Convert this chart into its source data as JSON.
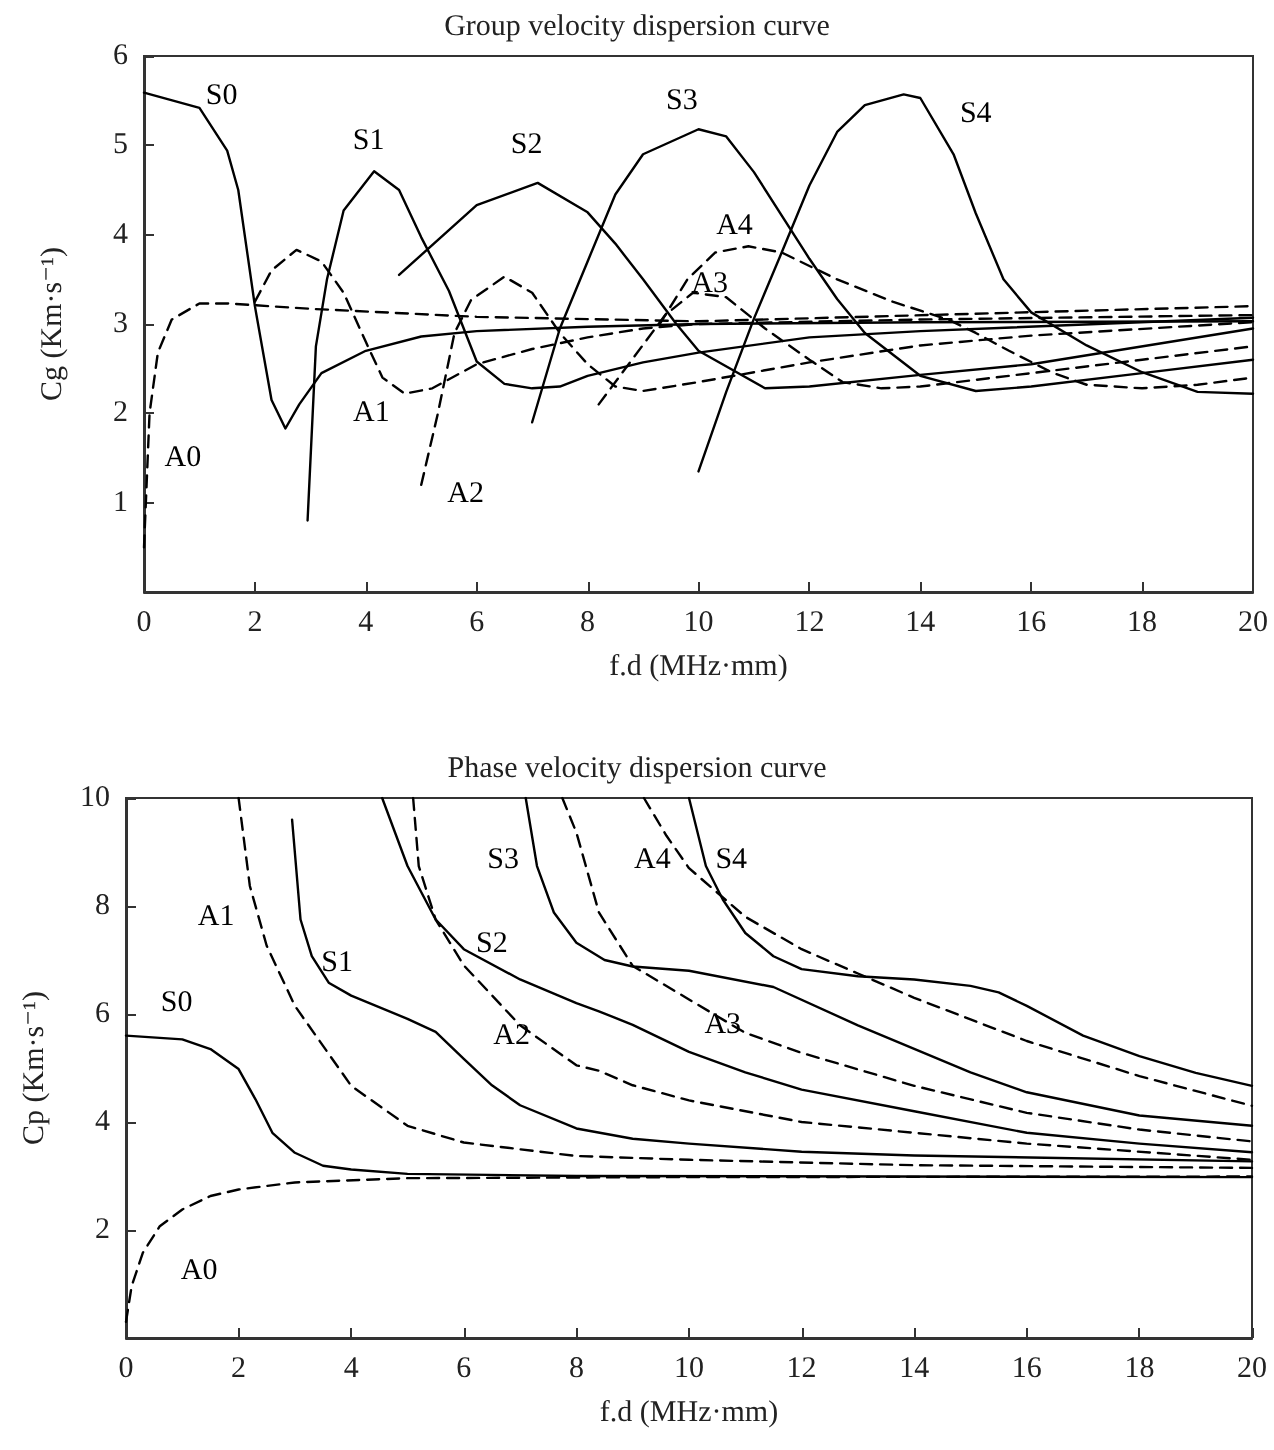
{
  "chart_data": [
    {
      "type": "line",
      "title": "Group velocity dispersion curve",
      "xlabel": "f.d (MHz·mm)",
      "ylabel": "Cg (Km·s⁻¹)",
      "xlim": [
        0,
        20
      ],
      "xticks": [
        0,
        2,
        4,
        6,
        8,
        10,
        12,
        14,
        16,
        18,
        20
      ],
      "ylim": [
        0,
        6
      ],
      "yticks": [
        1,
        2,
        3,
        4,
        5,
        6
      ],
      "grid": false,
      "legend": false,
      "series": [
        {
          "name": "S0",
          "color": "#000000",
          "line_style": "solid",
          "x": [
            0,
            1,
            1.5,
            1.7,
            2,
            2.3,
            2.55,
            2.8,
            3.2,
            4,
            5,
            6,
            8,
            10,
            14,
            20
          ],
          "values": [
            5.59,
            5.42,
            4.94,
            4.5,
            3.2,
            2.15,
            1.83,
            2.1,
            2.45,
            2.7,
            2.86,
            2.92,
            2.97,
            3.0,
            3.02,
            3.03
          ]
        },
        {
          "name": "S1",
          "color": "#000000",
          "line_style": "solid",
          "x": [
            2.95,
            3.1,
            3.3,
            3.6,
            4.15,
            4.6,
            5,
            5.5,
            6,
            6.5,
            7,
            7.5,
            8,
            9,
            10,
            12,
            14,
            20
          ],
          "values": [
            0.8,
            2.75,
            3.5,
            4.27,
            4.71,
            4.5,
            3.97,
            3.37,
            2.58,
            2.33,
            2.28,
            2.3,
            2.42,
            2.57,
            2.68,
            2.85,
            2.92,
            3.07
          ]
        },
        {
          "name": "S2",
          "color": "#000000",
          "line_style": "solid",
          "x": [
            4.6,
            6,
            7.1,
            8,
            8.5,
            9,
            9.6,
            10,
            11.2,
            12,
            14,
            16,
            20
          ],
          "values": [
            3.55,
            4.33,
            4.58,
            4.25,
            3.9,
            3.5,
            3.0,
            2.7,
            2.28,
            2.3,
            2.43,
            2.55,
            2.95
          ]
        },
        {
          "name": "S3",
          "color": "#000000",
          "line_style": "solid",
          "x": [
            7,
            7.5,
            8,
            8.5,
            9,
            10,
            10.5,
            11,
            12,
            12.5,
            13,
            14,
            15,
            16,
            18,
            20
          ],
          "values": [
            1.9,
            2.95,
            3.7,
            4.45,
            4.9,
            5.18,
            5.1,
            4.7,
            3.73,
            3.28,
            2.9,
            2.42,
            2.25,
            2.3,
            2.45,
            2.6
          ]
        },
        {
          "name": "S4",
          "color": "#000000",
          "line_style": "solid",
          "x": [
            10,
            10.5,
            11,
            11.5,
            12,
            12.5,
            13,
            13.7,
            14,
            14.6,
            15,
            15.5,
            16,
            17,
            18,
            19,
            20
          ],
          "values": [
            1.35,
            2.24,
            3.06,
            3.8,
            4.55,
            5.15,
            5.45,
            5.57,
            5.53,
            4.9,
            4.24,
            3.5,
            3.13,
            2.76,
            2.46,
            2.24,
            2.22
          ]
        },
        {
          "name": "A0",
          "color": "#000000",
          "line_style": "dashed",
          "x": [
            0,
            0.1,
            0.25,
            0.5,
            1,
            1.5,
            3,
            6,
            10,
            20
          ],
          "values": [
            0.5,
            2.0,
            2.68,
            3.05,
            3.23,
            3.23,
            3.17,
            3.08,
            3.03,
            3.2
          ]
        },
        {
          "name": "A1",
          "color": "#000000",
          "line_style": "dashed",
          "x": [
            2,
            2.3,
            2.75,
            3.2,
            3.6,
            4,
            4.3,
            4.7,
            5.2,
            6,
            7,
            8,
            9,
            10,
            14,
            20
          ],
          "values": [
            3.25,
            3.6,
            3.83,
            3.7,
            3.35,
            2.8,
            2.4,
            2.22,
            2.28,
            2.55,
            2.72,
            2.85,
            2.95,
            3.0,
            3.05,
            3.1
          ]
        },
        {
          "name": "A2",
          "color": "#000000",
          "line_style": "dashed",
          "x": [
            5,
            5.3,
            5.6,
            5.9,
            6.5,
            7,
            7.5,
            8,
            8.5,
            9,
            10,
            12,
            14,
            16,
            20
          ],
          "values": [
            1.2,
            2.0,
            2.9,
            3.27,
            3.53,
            3.35,
            2.9,
            2.55,
            2.3,
            2.25,
            2.35,
            2.57,
            2.76,
            2.87,
            3.02
          ]
        },
        {
          "name": "A3",
          "color": "#000000",
          "line_style": "dashed",
          "x": [
            8.2,
            8.8,
            9.4,
            9.9,
            10.5,
            11.2,
            12,
            12.6,
            13.3,
            14,
            16,
            18,
            20
          ],
          "values": [
            2.1,
            2.6,
            3.1,
            3.35,
            3.3,
            2.95,
            2.6,
            2.35,
            2.28,
            2.3,
            2.45,
            2.6,
            2.75
          ]
        },
        {
          "name": "A4",
          "color": "#000000",
          "line_style": "dashed",
          "x": [
            9.3,
            9.8,
            10.3,
            10.9,
            11.5,
            12.5,
            13.5,
            14.5,
            15,
            15.6,
            16.4,
            17,
            18,
            19,
            20
          ],
          "values": [
            3.0,
            3.5,
            3.8,
            3.87,
            3.8,
            3.5,
            3.25,
            3.05,
            2.9,
            2.7,
            2.45,
            2.32,
            2.28,
            2.32,
            2.4
          ]
        }
      ]
    },
    {
      "type": "line",
      "title": "Phase velocity dispersion curve",
      "xlabel": "f.d (MHz·mm)",
      "ylabel": "Cp (Km·s⁻¹)",
      "xlim": [
        0,
        20
      ],
      "xticks": [
        0,
        2,
        4,
        6,
        8,
        10,
        12,
        14,
        16,
        18,
        20
      ],
      "ylim": [
        0,
        10
      ],
      "yticks": [
        2,
        4,
        6,
        8,
        10
      ],
      "grid": false,
      "legend": false,
      "series": [
        {
          "name": "S0",
          "color": "#000000",
          "line_style": "solid",
          "x": [
            0,
            1,
            1.5,
            2,
            2.3,
            2.6,
            3,
            3.5,
            4,
            5,
            8,
            20
          ],
          "values": [
            5.6,
            5.53,
            5.35,
            4.98,
            4.42,
            3.8,
            3.43,
            3.19,
            3.12,
            3.04,
            3.0,
            2.98
          ]
        },
        {
          "name": "S1",
          "color": "#000000",
          "line_style": "solid",
          "x": [
            2.95,
            3.1,
            3.3,
            3.6,
            4,
            5,
            5.5,
            6,
            6.5,
            7,
            8,
            9,
            10,
            12,
            14,
            20
          ],
          "values": [
            9.6,
            7.75,
            7.07,
            6.58,
            6.34,
            5.91,
            5.67,
            5.17,
            4.68,
            4.31,
            3.88,
            3.69,
            3.6,
            3.45,
            3.38,
            3.27
          ]
        },
        {
          "name": "S2",
          "color": "#000000",
          "line_style": "solid",
          "x": [
            4.55,
            5,
            5.5,
            6,
            7,
            8,
            8.4,
            9,
            10,
            11,
            12,
            14,
            16,
            18,
            20
          ],
          "values": [
            10,
            8.74,
            7.75,
            7.2,
            6.64,
            6.2,
            6.05,
            5.8,
            5.3,
            4.92,
            4.6,
            4.2,
            3.8,
            3.6,
            3.44
          ]
        },
        {
          "name": "S3",
          "color": "#000000",
          "line_style": "solid",
          "x": [
            7.1,
            7.3,
            7.6,
            8,
            8.5,
            9,
            10,
            11.5,
            13,
            15,
            16,
            18,
            20
          ],
          "values": [
            10,
            8.74,
            7.88,
            7.32,
            7.0,
            6.88,
            6.8,
            6.5,
            5.79,
            4.92,
            4.55,
            4.12,
            3.93
          ]
        },
        {
          "name": "S4",
          "color": "#000000",
          "line_style": "solid",
          "x": [
            10,
            10.3,
            10.6,
            11,
            11.5,
            12,
            13,
            14,
            15,
            15.5,
            16,
            17,
            18,
            19,
            20
          ],
          "values": [
            10,
            8.74,
            8.12,
            7.5,
            7.07,
            6.83,
            6.7,
            6.64,
            6.52,
            6.4,
            6.15,
            5.6,
            5.22,
            4.91,
            4.67
          ]
        },
        {
          "name": "A0",
          "color": "#000000",
          "line_style": "dashed",
          "x": [
            0,
            0.1,
            0.3,
            0.6,
            1,
            1.5,
            2,
            3,
            5,
            10,
            20
          ],
          "values": [
            0.3,
            0.96,
            1.58,
            2.07,
            2.38,
            2.63,
            2.75,
            2.88,
            2.96,
            2.98,
            2.99
          ]
        },
        {
          "name": "A1",
          "color": "#000000",
          "line_style": "dashed",
          "x": [
            2,
            2.2,
            2.5,
            3,
            3.5,
            4,
            5,
            6,
            8,
            10,
            14,
            20
          ],
          "values": [
            10,
            8.37,
            7.26,
            6.15,
            5.41,
            4.67,
            3.93,
            3.62,
            3.37,
            3.3,
            3.2,
            3.15
          ]
        },
        {
          "name": "A2",
          "color": "#000000",
          "line_style": "dashed",
          "x": [
            5.1,
            5.2,
            5.5,
            6,
            7,
            8,
            8.4,
            9,
            10,
            12,
            14,
            16,
            20
          ],
          "values": [
            10,
            8.74,
            7.75,
            6.9,
            5.79,
            5.05,
            4.95,
            4.68,
            4.4,
            4.0,
            3.8,
            3.6,
            3.3
          ]
        },
        {
          "name": "A3",
          "color": "#000000",
          "line_style": "dashed",
          "x": [
            7.75,
            8,
            8.4,
            9,
            10,
            11,
            12,
            14,
            16,
            18,
            20
          ],
          "values": [
            10,
            9.36,
            7.88,
            6.89,
            6.27,
            5.65,
            5.28,
            4.67,
            4.17,
            3.86,
            3.64
          ]
        },
        {
          "name": "A4",
          "color": "#000000",
          "line_style": "dashed",
          "x": [
            9.2,
            9.6,
            10,
            10.5,
            11,
            12,
            13,
            14,
            15,
            16,
            18,
            20
          ],
          "values": [
            10,
            9.3,
            8.7,
            8.25,
            7.8,
            7.2,
            6.75,
            6.3,
            5.9,
            5.5,
            4.85,
            4.3
          ]
        }
      ]
    }
  ]
}
